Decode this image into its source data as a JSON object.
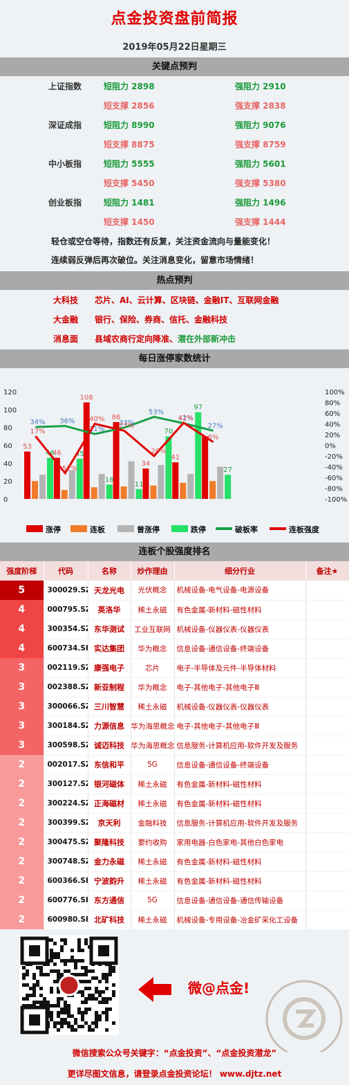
{
  "header": {
    "title": "点金投资盘前简报",
    "date": "2019年05月22日星期三"
  },
  "key_points": {
    "section_title": "关键点预判",
    "rows": [
      {
        "index": "上证指数",
        "c1": "短阻力 2898",
        "c2": "强阻力 2910",
        "color": "#1a9a3a"
      },
      {
        "index": "",
        "c1": "短支撑 2856",
        "c2": "强支撑 2838",
        "color": "#e86666"
      },
      {
        "index": "深证成指",
        "c1": "短阻力 8990",
        "c2": "强阻力 9076",
        "color": "#1a9a3a"
      },
      {
        "index": "",
        "c1": "短支撑 8875",
        "c2": "强支撑 8759",
        "color": "#e86666"
      },
      {
        "index": "中小板指",
        "c1": "短阻力 5555",
        "c2": "强阻力 5601",
        "color": "#1a9a3a"
      },
      {
        "index": "",
        "c1": "短支撑 5450",
        "c2": "强支撑 5380",
        "color": "#e86666"
      },
      {
        "index": "创业板指",
        "c1": "短阻力 1481",
        "c2": "强阻力 1496",
        "color": "#1a9a3a"
      },
      {
        "index": "",
        "c1": "短支撑 1450",
        "c2": "强支撑 1444",
        "color": "#e86666"
      }
    ],
    "notes": [
      "轻仓或空仓等待，指数还有反复，关注资金流向与量能变化！",
      "连续弱反弹后再次破位。关注消息变化，留意市场情绪！"
    ]
  },
  "hot": {
    "section_title": "热点预判",
    "rows": [
      {
        "label": "大科技",
        "text": "芯片、AI、云计算、区块链、金融IT、互联网金融",
        "extra": ""
      },
      {
        "label": "大金融",
        "text": "银行、保险、券商、信托、金融科技",
        "extra": ""
      },
      {
        "label": "消息面",
        "text": "县域农商行定向降准、",
        "extra": "潜在外部新冲击"
      }
    ]
  },
  "stats": {
    "section_title": "每日涨停家数统计"
  },
  "chart_data": {
    "type": "bar",
    "categories": [
      "1",
      "2",
      "3",
      "4",
      "5",
      "6",
      "7"
    ],
    "left_axis": {
      "ticks": [
        "0",
        "20",
        "40",
        "60",
        "80",
        "100",
        "120"
      ],
      "min": 0,
      "max": 120
    },
    "right_axis": {
      "ticks": [
        "-100%",
        "-80%",
        "-60%",
        "-40%",
        "-20%",
        "0%",
        "20%",
        "40%",
        "60%",
        "80%",
        "100%"
      ],
      "min": -100,
      "max": 100
    },
    "bar_series": [
      {
        "name": "涨停",
        "color": "#e00000",
        "values": [
          53,
          46,
          108,
          86,
          34,
          41,
          70
        ],
        "labels": [
          "53",
          "46",
          "108",
          "86",
          "34",
          "41",
          ""
        ]
      },
      {
        "name": "连板",
        "color": "#f07c2a",
        "values": [
          20,
          10,
          13,
          14,
          15,
          18,
          20
        ],
        "labels": [
          "",
          "",
          "",
          "",
          "",
          "",
          ""
        ]
      },
      {
        "name": "曾涨停",
        "color": "#b4b4b4",
        "values": [
          27,
          32,
          28,
          42,
          38,
          28,
          36
        ],
        "labels": [
          "",
          "",
          "",
          "",
          "",
          "",
          ""
        ]
      },
      {
        "name": "跌停",
        "color": "#26e068",
        "values": [
          46,
          45,
          16,
          11,
          70,
          97,
          27
        ],
        "labels": [
          "46",
          "45",
          "16",
          "11",
          "70",
          "97",
          "27"
        ]
      }
    ],
    "line_series": [
      {
        "name": "破板率",
        "color": "#18a048",
        "values": [
          34,
          36,
          21,
          33,
          53,
          41,
          27
        ],
        "labels": [
          "34%",
          "36%",
          "21%",
          "33%",
          "53%",
          "41%",
          "27%"
        ]
      },
      {
        "name": "连板强度",
        "color": "#e00000",
        "values": [
          17,
          -52,
          40,
          27,
          -20,
          42,
          6
        ],
        "labels": [
          "17%",
          "-52%",
          "40%",
          "27%",
          "-20%",
          "42%",
          "6%"
        ]
      }
    ]
  },
  "ranking": {
    "section_title": "连板个股强度排名",
    "headers": [
      "强度阶梯",
      "代码",
      "名称",
      "炒作理由",
      "细分行业",
      "备注★"
    ],
    "rows": [
      {
        "level": "5",
        "code": "300029.SZ",
        "name": "天龙光电",
        "reason": "光伏概念",
        "industry": "机械设备-电气设备-电源设备",
        "color": "#c00000"
      },
      {
        "level": "4",
        "code": "000795.SZ",
        "name": "英洛华",
        "reason": "稀土永磁",
        "industry": "有色金属-新材料-磁性材料",
        "color": "#f04545"
      },
      {
        "level": "4",
        "code": "300354.SZ",
        "name": "东华测试",
        "reason": "工业互联网",
        "industry": "机械设备-仪器仪表-仪器仪表",
        "color": "#f04545"
      },
      {
        "level": "4",
        "code": "600734.SH",
        "name": "实达集团",
        "reason": "华为概念",
        "industry": "信息设备-通信设备-终端设备",
        "color": "#f04545"
      },
      {
        "level": "3",
        "code": "002119.SZ",
        "name": "康强电子",
        "reason": "芯片",
        "industry": "电子-半导体及元件-半导体材料",
        "color": "#f56464"
      },
      {
        "level": "3",
        "code": "002388.SZ",
        "name": "新亚制程",
        "reason": "华为概念",
        "industry": "电子-其他电子-其他电子Ⅲ",
        "color": "#f56464"
      },
      {
        "level": "3",
        "code": "300066.SZ",
        "name": "三川智慧",
        "reason": "稀土永磁",
        "industry": "机械设备-仪器仪表-仪器仪表",
        "color": "#f56464"
      },
      {
        "level": "3",
        "code": "300184.SZ",
        "name": "力源信息",
        "reason": "华为海思概念股",
        "industry": "电子-其他电子-其他电子Ⅲ",
        "color": "#f56464"
      },
      {
        "level": "3",
        "code": "300598.SZ",
        "name": "诚迈科技",
        "reason": "华为海思概念股",
        "industry": "信息服务-计算机应用-软件开发及服务",
        "color": "#f56464"
      },
      {
        "level": "2",
        "code": "002017.SZ",
        "name": "东信和平",
        "reason": "5G",
        "industry": "信息设备-通信设备-终端设备",
        "color": "#f89a9a"
      },
      {
        "level": "2",
        "code": "300127.SZ",
        "name": "银河磁体",
        "reason": "稀土永磁",
        "industry": "有色金属-新材料-磁性材料",
        "color": "#f89a9a"
      },
      {
        "level": "2",
        "code": "300224.SZ",
        "name": "正海磁材",
        "reason": "稀土永磁",
        "industry": "有色金属-新材料-磁性材料",
        "color": "#f89a9a"
      },
      {
        "level": "2",
        "code": "300399.SZ",
        "name": "京天利",
        "reason": "金融科技",
        "industry": "信息服务-计算机应用-软件开发及服务",
        "color": "#f89a9a"
      },
      {
        "level": "2",
        "code": "300475.SZ",
        "name": "聚隆科技",
        "reason": "要约收购",
        "industry": "家用电器-白色家电-其他白色家电",
        "color": "#f89a9a"
      },
      {
        "level": "2",
        "code": "300748.SZ",
        "name": "金力永磁",
        "reason": "稀土永磁",
        "industry": "有色金属-新材料-磁性材料",
        "color": "#f89a9a"
      },
      {
        "level": "2",
        "code": "600366.SH",
        "name": "宁波韵升",
        "reason": "稀土永磁",
        "industry": "有色金属-新材料-磁性材料",
        "color": "#f89a9a"
      },
      {
        "level": "2",
        "code": "600776.SH",
        "name": "东方通信",
        "reason": "5G",
        "industry": "信息设备-通信设备-通信传输设备",
        "color": "#f89a9a"
      },
      {
        "level": "2",
        "code": "600980.SH",
        "name": "北矿科技",
        "reason": "稀土永磁",
        "industry": "机械设备-专用设备-冶金矿采化工设备",
        "color": "#f89a9a"
      }
    ]
  },
  "footer": {
    "wechat": "微@点金!",
    "line1": "微信搜索公众号关键字：“点金投资”、“点金投资潜龙”",
    "line2": "更详尽图文信息，请登录点金投资论坛！  www.djtz.net",
    "seal_top": "第 一 私 募",
    "seal_bottom": "WWW.SIMU001.CN",
    "qr_icon": "qr-code-icon",
    "arrow_icon": "arrow-left-icon"
  }
}
